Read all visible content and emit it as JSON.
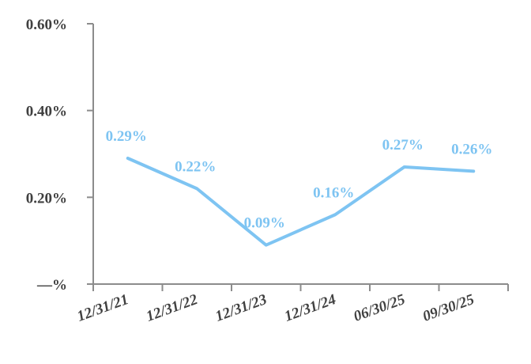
{
  "chart_data": {
    "type": "line",
    "categories": [
      "12/31/21",
      "12/31/22",
      "12/31/23",
      "12/31/24",
      "06/30/25",
      "09/30/25"
    ],
    "series": [
      {
        "values": [
          0.29,
          0.22,
          0.09,
          0.16,
          0.27,
          0.26
        ],
        "data_labels": [
          "0.29%",
          "0.22%",
          "0.09%",
          "0.16%",
          "0.27%",
          "0.26%"
        ],
        "color": "#7ec4f2"
      }
    ],
    "ylim": [
      0,
      0.6
    ],
    "yticks": [
      0,
      0.2,
      0.4,
      0.6
    ],
    "ytick_labels": [
      "—%",
      "0.20%",
      "0.40%",
      "0.60%"
    ],
    "grid": false,
    "axis_color": "#8c8c8c",
    "text_color": "#404040"
  }
}
